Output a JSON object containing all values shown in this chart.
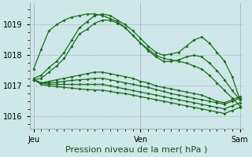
{
  "bg_color": "#cce8e8",
  "grid_major_color": "#c0c0d8",
  "grid_minor_color": "#dcdce8",
  "line_color": "#1a6e1a",
  "marker": "D",
  "markersize": 2.0,
  "linewidth": 0.9,
  "xlabel": "Pression niveau de la mer( hPa )",
  "xlabel_fontsize": 8,
  "tick_fontsize": 7,
  "ylim": [
    1015.6,
    1019.7
  ],
  "yticks": [
    1016,
    1017,
    1018,
    1019
  ],
  "xtick_labels": [
    "Jeu",
    "Ven",
    "Sam"
  ],
  "xtick_positions": [
    0,
    14,
    27
  ],
  "vline_positions": [
    0,
    14,
    27
  ],
  "n_points": 28,
  "series": [
    [
      1017.25,
      1017.35,
      1017.6,
      1017.8,
      1018.1,
      1018.5,
      1018.9,
      1019.1,
      1019.3,
      1019.35,
      1019.3,
      1019.15,
      1019.0,
      1018.8,
      1018.55,
      1018.3,
      1018.1,
      1018.0,
      1018.05,
      1018.1,
      1018.3,
      1018.5,
      1018.6,
      1018.4,
      1018.1,
      1017.8,
      1017.3,
      1016.55
    ],
    [
      1017.2,
      1017.25,
      1017.45,
      1017.65,
      1017.9,
      1018.3,
      1018.7,
      1018.85,
      1019.05,
      1019.15,
      1019.15,
      1019.05,
      1018.9,
      1018.65,
      1018.4,
      1018.15,
      1017.95,
      1017.8,
      1017.8,
      1017.85,
      1017.95,
      1018.0,
      1017.95,
      1017.75,
      1017.5,
      1017.2,
      1016.85,
      1016.55
    ],
    [
      1017.55,
      1018.2,
      1018.8,
      1019.0,
      1019.15,
      1019.25,
      1019.3,
      1019.35,
      1019.35,
      1019.3,
      1019.2,
      1019.1,
      1018.9,
      1018.65,
      1018.4,
      1018.2,
      1018.0,
      1017.9,
      1017.85,
      1017.8,
      1017.75,
      1017.65,
      1017.55,
      1017.35,
      1017.1,
      1016.85,
      1016.6,
      1016.35
    ],
    [
      1017.2,
      1017.1,
      1017.15,
      1017.2,
      1017.25,
      1017.3,
      1017.35,
      1017.4,
      1017.45,
      1017.45,
      1017.4,
      1017.35,
      1017.3,
      1017.25,
      1017.15,
      1017.1,
      1017.0,
      1016.95,
      1016.9,
      1016.85,
      1016.8,
      1016.75,
      1016.7,
      1016.6,
      1016.5,
      1016.45,
      1016.55,
      1016.65
    ],
    [
      1017.2,
      1017.1,
      1017.1,
      1017.12,
      1017.15,
      1017.18,
      1017.2,
      1017.22,
      1017.25,
      1017.25,
      1017.2,
      1017.15,
      1017.1,
      1017.05,
      1017.0,
      1016.95,
      1016.88,
      1016.82,
      1016.75,
      1016.7,
      1016.65,
      1016.6,
      1016.55,
      1016.5,
      1016.45,
      1016.4,
      1016.5,
      1016.6
    ],
    [
      1017.2,
      1017.1,
      1017.05,
      1017.05,
      1017.05,
      1017.05,
      1017.05,
      1017.05,
      1017.05,
      1017.05,
      1017.0,
      1016.95,
      1016.9,
      1016.85,
      1016.8,
      1016.75,
      1016.7,
      1016.65,
      1016.6,
      1016.55,
      1016.5,
      1016.45,
      1016.4,
      1016.35,
      1016.3,
      1016.25,
      1016.35,
      1016.45
    ],
    [
      1017.2,
      1017.05,
      1017.0,
      1016.98,
      1016.95,
      1016.93,
      1016.9,
      1016.88,
      1016.87,
      1016.86,
      1016.82,
      1016.78,
      1016.75,
      1016.7,
      1016.65,
      1016.6,
      1016.55,
      1016.5,
      1016.45,
      1016.4,
      1016.35,
      1016.3,
      1016.25,
      1016.2,
      1016.15,
      1016.1,
      1016.2,
      1016.3
    ]
  ]
}
